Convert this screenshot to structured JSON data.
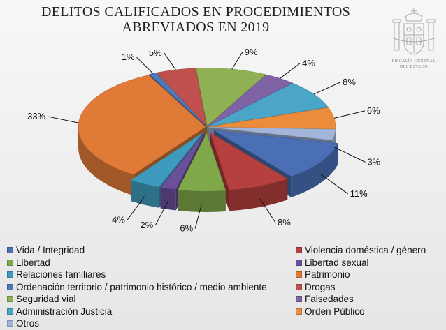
{
  "title_lines": [
    "DELITOS CALIFICADOS EN PROCEDIMIENTOS",
    "ABREVIADOS EN 2019"
  ],
  "emblem": {
    "text_lines": [
      "FISCALÍA GENERAL",
      "DEL ESTADO"
    ]
  },
  "chart_data": {
    "type": "pie",
    "three_d": true,
    "title": "DELITOS CALIFICADOS EN PROCEDIMIENTOS ABREVIADOS EN 2019",
    "categories": [
      "Vida / Integridad",
      "Violencia doméstica / género",
      "Libertad",
      "Libertad sexual",
      "Relaciones familiares",
      "Patrimonio",
      "Ordenación territorio / patrimonio histórico / medio ambiente",
      "Drogas",
      "Seguridad vial",
      "Falsedades",
      "Administración Justicia",
      "Orden Público",
      "Otros"
    ],
    "values": [
      11,
      8,
      6,
      2,
      4,
      33,
      1,
      5,
      9,
      4,
      8,
      6,
      3
    ],
    "labels": [
      "11%",
      "8%",
      "6%",
      "2%",
      "4%",
      "33%",
      "1%",
      "5%",
      "9%",
      "4%",
      "8%",
      "6%",
      "3%"
    ],
    "colors": [
      "#4a6fb5",
      "#b5403d",
      "#7fa84a",
      "#6a4f9a",
      "#3f9bbd",
      "#e07a37",
      "#4f78b8",
      "#c0504d",
      "#8fb153",
      "#7e63a5",
      "#4aa5c6",
      "#eb8c3c",
      "#a3b6da"
    ],
    "legend_position": "bottom"
  }
}
